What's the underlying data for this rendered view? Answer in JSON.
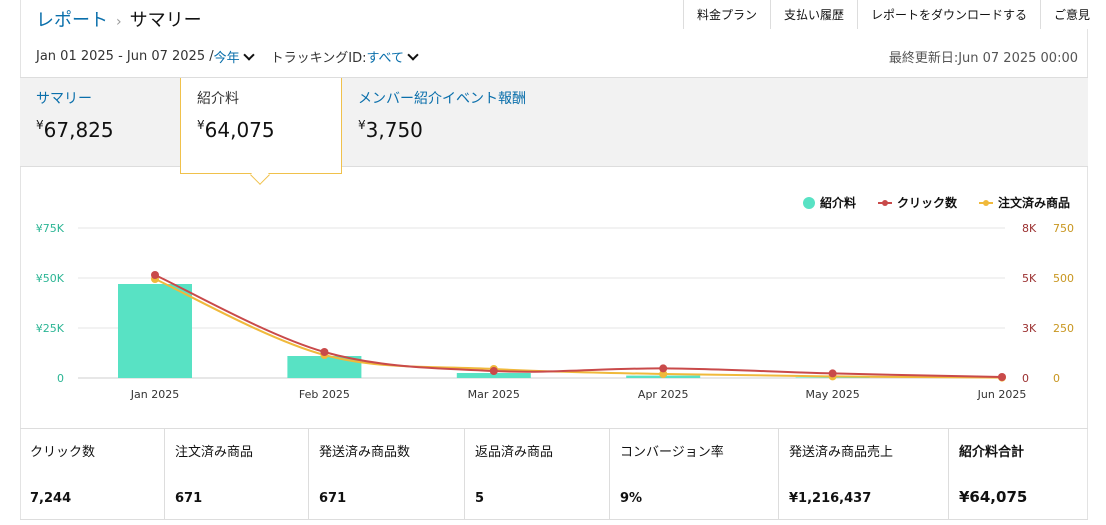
{
  "breadcrumb": {
    "parent": "レポート",
    "separator": "›",
    "current": "サマリー"
  },
  "topnav": [
    "料金プラン",
    "支払い履歴",
    "レポートをダウンロードする",
    "ご意見"
  ],
  "filters": {
    "date_range": "Jan 01 2025 - Jun 07 2025 /",
    "period": "今年",
    "tracking_label": "トラッキングID:",
    "tracking_value": "すべて"
  },
  "updated": "最終更新日:Jun 07 2025 00:00",
  "tabs": [
    {
      "label": "サマリー",
      "currency": "¥",
      "value": "67,825"
    },
    {
      "label": "紹介料",
      "currency": "¥",
      "value": "64,075"
    },
    {
      "label": "メンバー紹介イベント報酬",
      "currency": "¥",
      "value": "3,750"
    }
  ],
  "colors": {
    "fee": "#58e2c4",
    "clicks": "#c94a4a",
    "ordered": "#f0b93b",
    "link": "#0a6fab"
  },
  "chart_data": {
    "type": "bar",
    "categories": [
      "Jan 2025",
      "Feb 2025",
      "Mar 2025",
      "Apr 2025",
      "May 2025",
      "Jun 2025"
    ],
    "series": [
      {
        "name": "紹介料",
        "type": "bar",
        "axis": "left",
        "values": [
          47000,
          11000,
          2500,
          1200,
          300,
          0
        ]
      },
      {
        "name": "クリック数",
        "type": "line",
        "axis": "right1",
        "values": [
          5150,
          1300,
          350,
          480,
          230,
          50
        ]
      },
      {
        "name": "注文済み商品",
        "type": "line",
        "axis": "right2",
        "values": [
          495,
          115,
          45,
          20,
          8,
          2
        ]
      }
    ],
    "axes": {
      "left": {
        "min": 0,
        "max": 75000,
        "ticks": [
          "0",
          "¥25K",
          "¥50K",
          "¥75K"
        ]
      },
      "right1": {
        "min": 0,
        "max": 7500,
        "ticks": [
          "0",
          "3K",
          "5K",
          "8K"
        ]
      },
      "right2": {
        "min": 0,
        "max": 750,
        "ticks": [
          "0",
          "250",
          "500",
          "750"
        ]
      }
    },
    "grid": true,
    "legend": "top-right"
  },
  "stats": [
    {
      "label": "クリック数",
      "value": "7,244"
    },
    {
      "label": "注文済み商品",
      "value": "671"
    },
    {
      "label": "発送済み商品数",
      "value": "671"
    },
    {
      "label": "返品済み商品",
      "value": "5"
    },
    {
      "label": "コンバージョン率",
      "value": "9%"
    },
    {
      "label": "発送済み商品売上",
      "value": "¥1,216,437"
    },
    {
      "label": "紹介料合計",
      "value": "¥64,075"
    }
  ]
}
